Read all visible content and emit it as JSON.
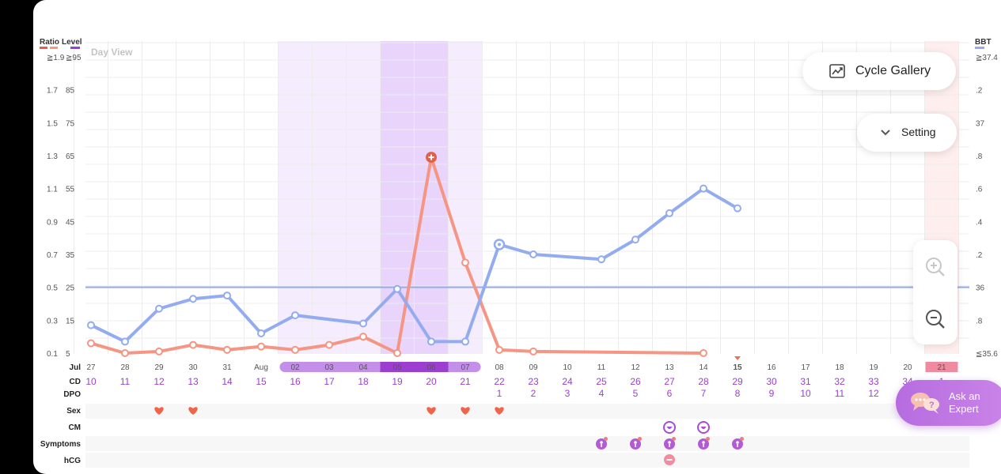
{
  "header": {
    "ratio_label": "Ratio",
    "level_label": "Level",
    "bbt_label": "BBT",
    "day_view": "Day View"
  },
  "colors": {
    "ratio": "#f59583",
    "bbt": "#93abef",
    "purple": "#9c3fd0",
    "light_purple": "#f5ecfd",
    "mid_purple": "#e9d5fb",
    "period_pink": "#ffeeee",
    "heart": "#f0654a"
  },
  "axes": {
    "ratio_ticks": [
      "≧1.9",
      "1.7",
      "1.5",
      "1.3",
      "1.1",
      "0.9",
      "0.7",
      "0.5",
      "0.3",
      "0.1"
    ],
    "level_ticks": [
      "≧95",
      "85",
      "75",
      "65",
      "55",
      "45",
      "35",
      "25",
      "15",
      "5"
    ],
    "bbt_ticks": [
      "≧37.4",
      ".2",
      "37",
      ".8",
      ".6",
      ".4",
      ".2",
      "36",
      ".8",
      "≦35.6"
    ]
  },
  "buttons": {
    "cycle_gallery": "Cycle Gallery",
    "setting": "Setting",
    "ask_expert_line1": "Ask an",
    "ask_expert_line2": "Expert"
  },
  "row_labels": {
    "month": "Jul",
    "cd": "CD",
    "dpo": "DPO",
    "sex": "Sex",
    "cm": "CM",
    "symptoms": "Symptoms",
    "hcg": "hCG"
  },
  "chart_data": {
    "type": "line",
    "x": [
      "27",
      "28",
      "29",
      "30",
      "31",
      "Aug",
      "02",
      "03",
      "04",
      "05",
      "06",
      "07",
      "08",
      "09",
      "10",
      "11",
      "12",
      "13",
      "14",
      "15",
      "16",
      "17",
      "18",
      "19",
      "20",
      "21"
    ],
    "cd": [
      "10",
      "11",
      "12",
      "13",
      "14",
      "15",
      "16",
      "17",
      "18",
      "19",
      "20",
      "21",
      "22",
      "23",
      "24",
      "25",
      "26",
      "27",
      "28",
      "29",
      "30",
      "31",
      "32",
      "33",
      "34",
      "1"
    ],
    "dpo": [
      "",
      "",
      "",
      "",
      "",
      "",
      "",
      "",
      "",
      "",
      "",
      "",
      "1",
      "2",
      "3",
      "4",
      "5",
      "6",
      "7",
      "8",
      "9",
      "10",
      "11",
      "12",
      "",
      ""
    ],
    "fertile_days": [
      "02",
      "03",
      "04",
      "05",
      "06",
      "07"
    ],
    "peak_days": [
      "05",
      "06"
    ],
    "today": "15",
    "period_day": "21",
    "series": [
      {
        "name": "Ratio",
        "axis": "left",
        "values": [
          0.16,
          0.1,
          0.11,
          0.15,
          0.12,
          0.14,
          0.12,
          0.15,
          0.2,
          0.1,
          1.29,
          0.65,
          0.12,
          0.11,
          null,
          null,
          null,
          null,
          0.1,
          null,
          null,
          null,
          null,
          null,
          null,
          null
        ]
      },
      {
        "name": "BBT",
        "axis": "right",
        "values": [
          35.77,
          35.67,
          35.87,
          35.93,
          35.95,
          35.72,
          35.83,
          null,
          35.78,
          35.99,
          35.67,
          35.67,
          36.26,
          36.2,
          null,
          36.17,
          36.29,
          36.45,
          36.6,
          36.48,
          null,
          null,
          null,
          null,
          null,
          null
        ]
      }
    ],
    "ratio_peak_marker_day": "06",
    "bbt_cover_line": 36.0,
    "left_axis_ratio_range": [
      0.1,
      1.9
    ],
    "left_axis_level_range": [
      5,
      95
    ],
    "right_axis_range": [
      35.6,
      37.4
    ],
    "events": {
      "sex": [
        "29",
        "30",
        "06",
        "07",
        "08"
      ],
      "cm": [
        "13",
        "14"
      ],
      "symptoms": [
        "11",
        "12",
        "13",
        "14",
        "15"
      ],
      "hcg": [
        "13"
      ]
    }
  }
}
